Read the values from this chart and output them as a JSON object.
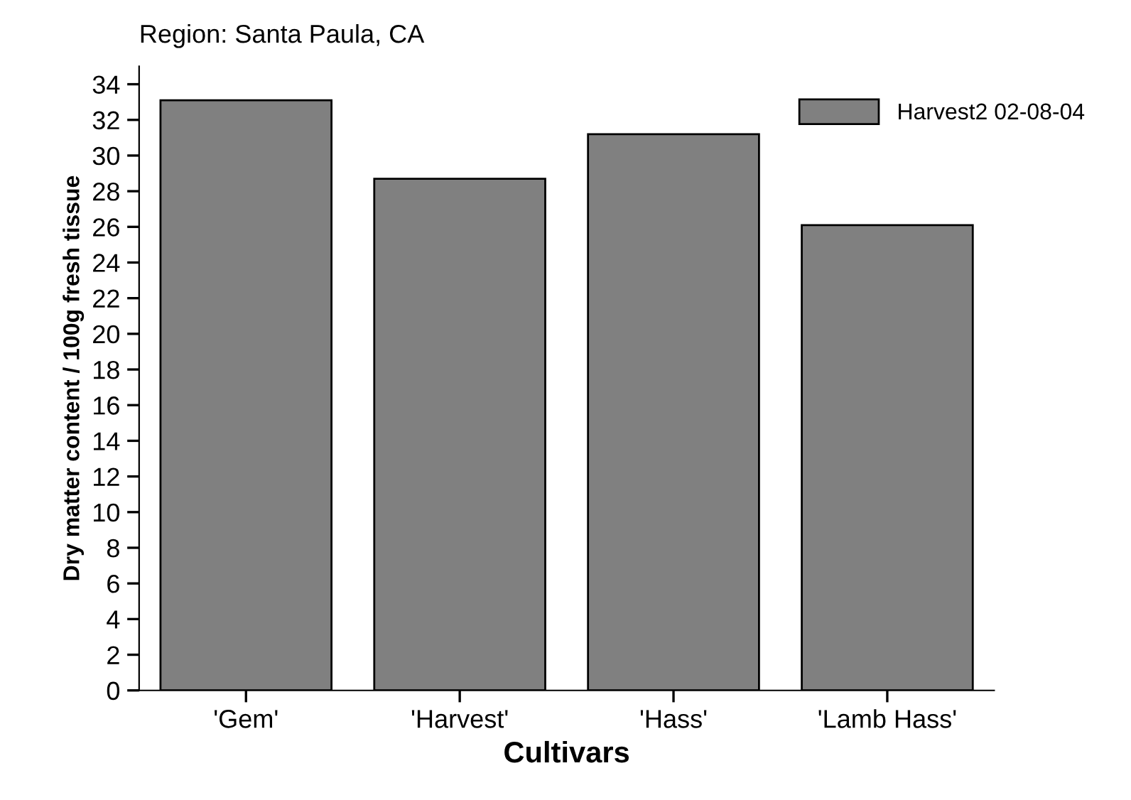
{
  "chart_data": {
    "type": "bar",
    "title": "Region: Santa Paula, CA",
    "xlabel": "Cultivars",
    "ylabel": "Dry matter content / 100g fresh tissue",
    "categories": [
      "'Gem'",
      "'Harvest'",
      "'Hass'",
      "'Lamb Hass'"
    ],
    "series": [
      {
        "name": "Harvest2 02-08-04",
        "color": "#808080",
        "values": [
          33.1,
          28.7,
          31.2,
          26.1
        ]
      }
    ],
    "ylim": [
      0,
      35
    ],
    "yticks": [
      0,
      2,
      4,
      6,
      8,
      10,
      12,
      14,
      16,
      18,
      20,
      22,
      24,
      26,
      28,
      30,
      32,
      34
    ],
    "grid": false,
    "legend": "top right"
  }
}
